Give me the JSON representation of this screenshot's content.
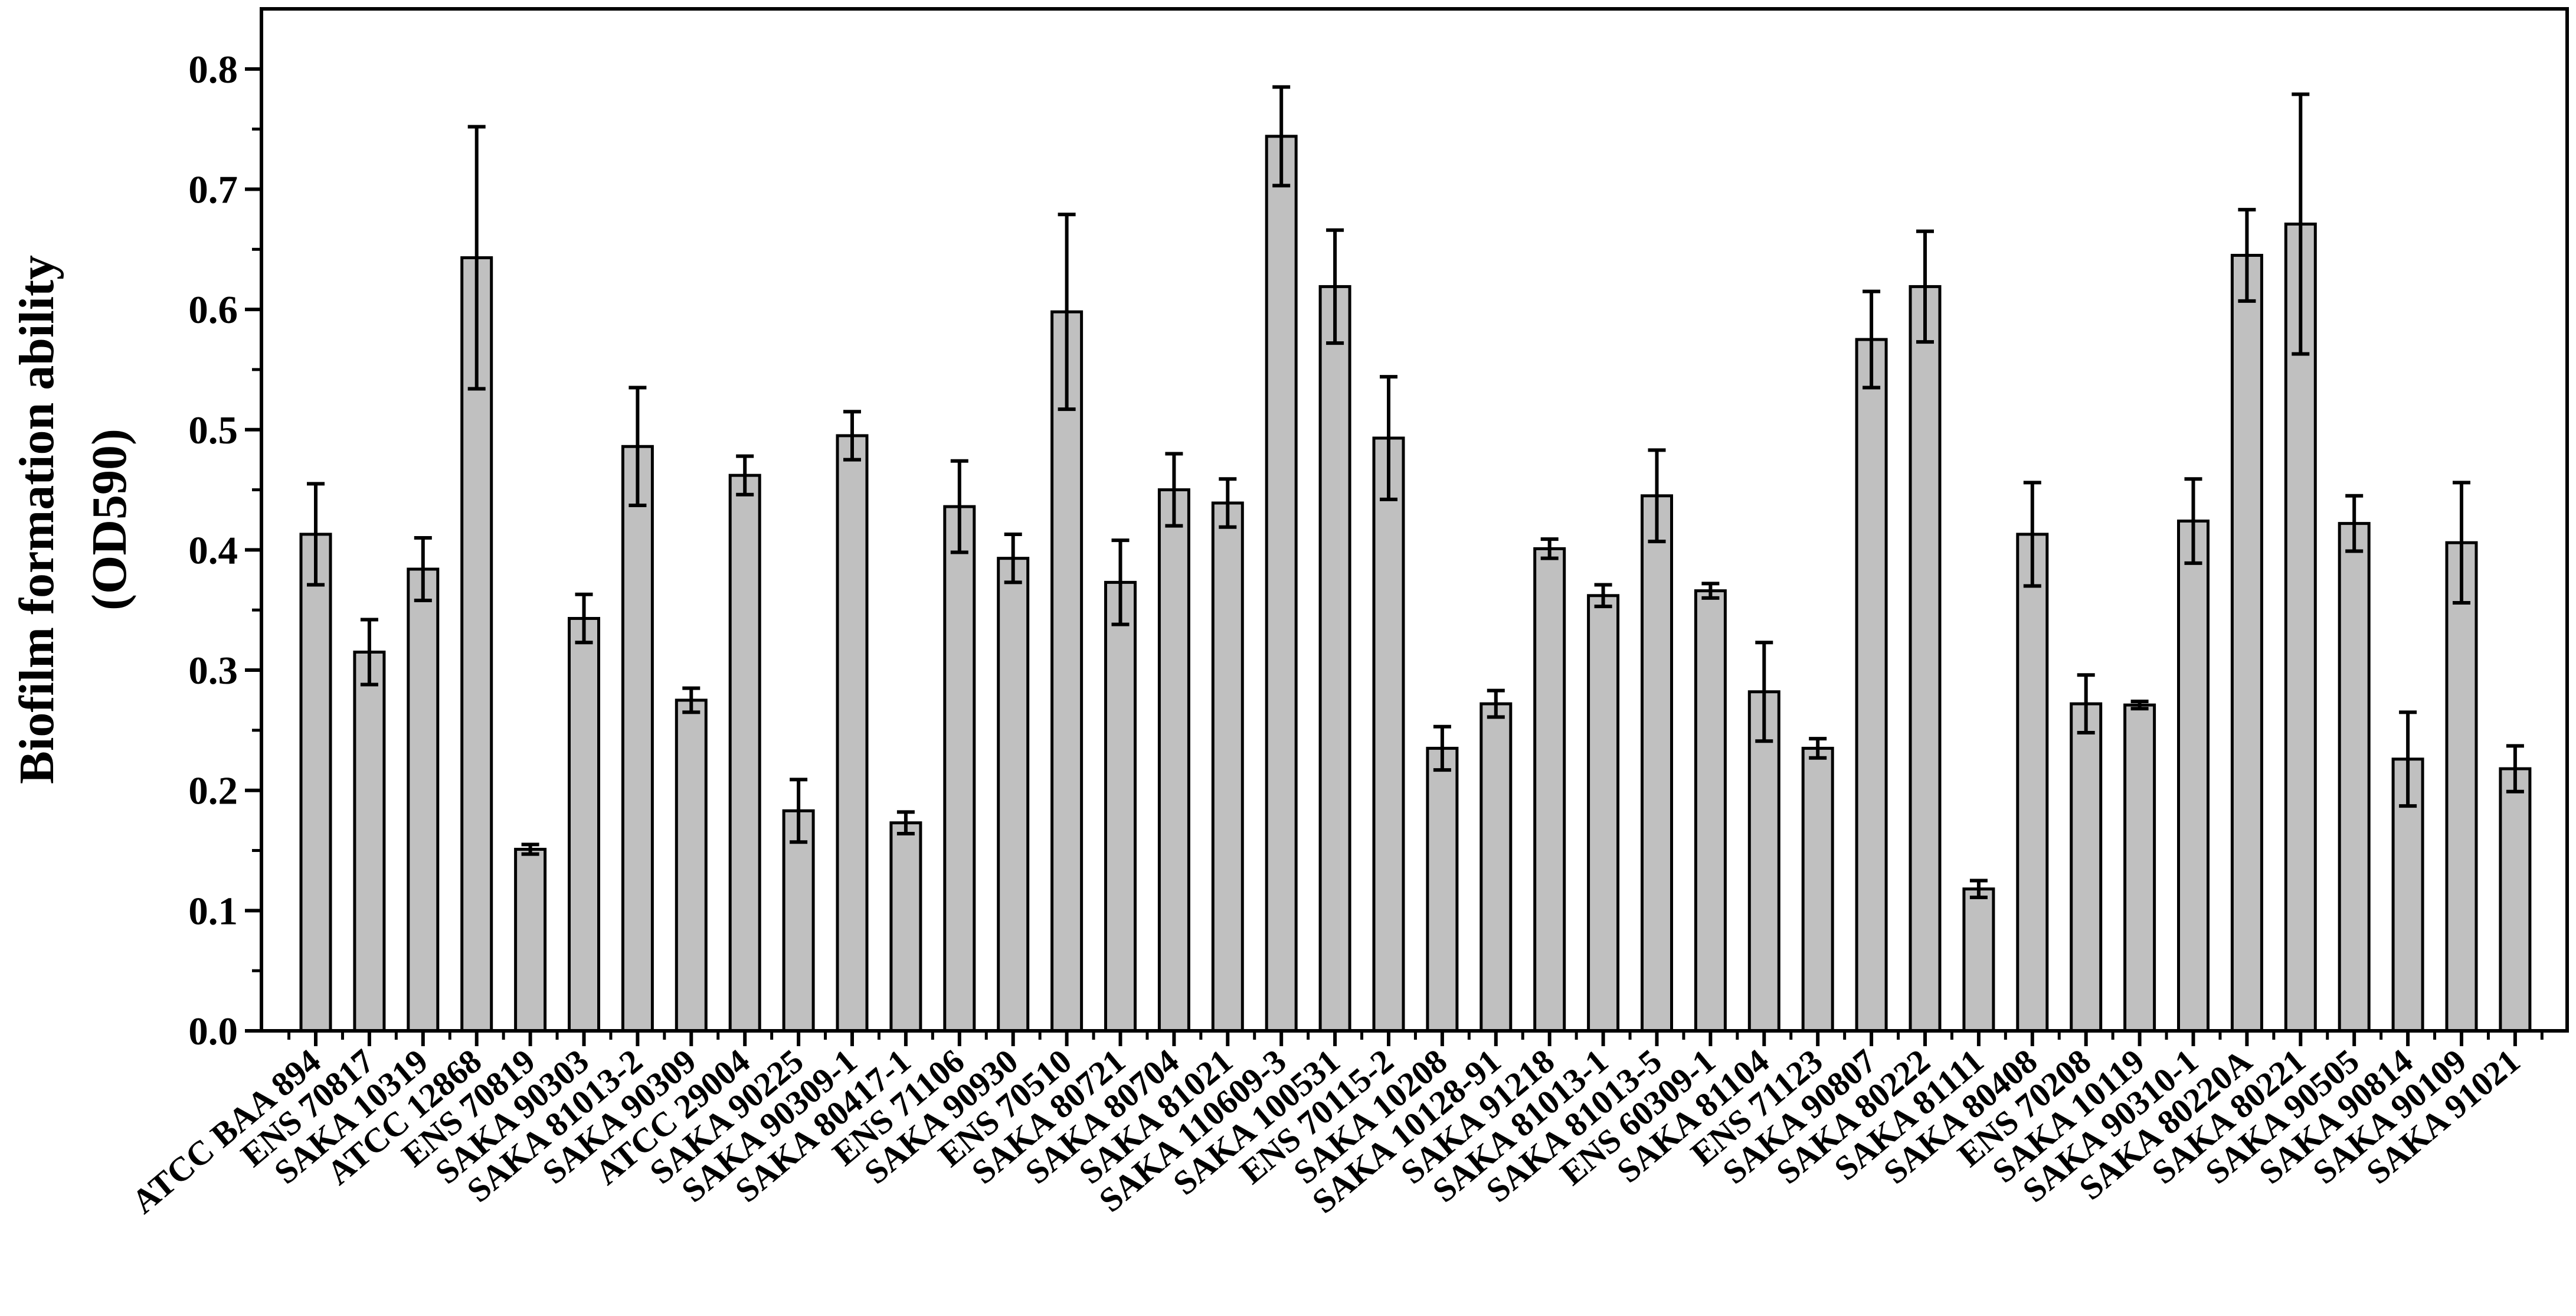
{
  "chart_data": {
    "type": "bar",
    "title": "",
    "xlabel": "",
    "ylabel": "Biofilm formation ability",
    "ylabel_unit": "(OD590)",
    "ylim": [
      0,
      0.85
    ],
    "yticks": [
      "0.0",
      "0.1",
      "0.2",
      "0.3",
      "0.4",
      "0.5",
      "0.6",
      "0.7",
      "0.8"
    ],
    "grid": false,
    "legend": "none",
    "bar_color": "#c0c0c0",
    "edge_color": "#000000",
    "categories": [
      "ATCC BAA 894",
      "ENS 70817",
      "SAKA 10319",
      "ATCC 12868",
      "ENS 70819",
      "SAKA 90303",
      "SAKA 81013-2",
      "SAKA 90309",
      "ATCC 29004",
      "SAKA 90225",
      "SAKA 90309-1",
      "SAKA 80417-1",
      "ENS 71106",
      "SAKA 90930",
      "ENS 70510",
      "SAKA 80721",
      "SAKA 80704",
      "SAKA 81021",
      "SAKA 110609-3",
      "SAKA 100531",
      "ENS 70115-2",
      "SAKA 10208",
      "SAKA 10128-91",
      "SAKA 91218",
      "SAKA 81013-1",
      "SAKA 81013-5",
      "ENS 60309-1",
      "SAKA 81104",
      "ENS 71123",
      "SAKA 90807",
      "SAKA 80222",
      "SAKA 81111",
      "SAKA 80408",
      "ENS 70208",
      "SAKA 10119",
      "SAKA 90310-1",
      "SAKA 80220A",
      "SAKA 80221",
      "SAKA 90505",
      "SAKA 90814",
      "SAKA 90109",
      "SAKA 91021"
    ],
    "values": [
      0.413,
      0.315,
      0.384,
      0.643,
      0.151,
      0.343,
      0.486,
      0.275,
      0.462,
      0.183,
      0.495,
      0.173,
      0.436,
      0.393,
      0.598,
      0.373,
      0.45,
      0.439,
      0.744,
      0.619,
      0.493,
      0.235,
      0.272,
      0.401,
      0.362,
      0.445,
      0.366,
      0.282,
      0.235,
      0.575,
      0.619,
      0.118,
      0.413,
      0.272,
      0.271,
      0.424,
      0.645,
      0.671,
      0.422,
      0.226,
      0.406,
      0.218
    ],
    "errors": [
      0.042,
      0.027,
      0.026,
      0.109,
      0.004,
      0.02,
      0.049,
      0.01,
      0.016,
      0.026,
      0.02,
      0.009,
      0.038,
      0.02,
      0.081,
      0.035,
      0.03,
      0.02,
      0.041,
      0.047,
      0.051,
      0.018,
      0.011,
      0.008,
      0.009,
      0.038,
      0.006,
      0.041,
      0.008,
      0.04,
      0.046,
      0.007,
      0.043,
      0.024,
      0.003,
      0.035,
      0.038,
      0.108,
      0.023,
      0.039,
      0.05,
      0.019
    ]
  }
}
